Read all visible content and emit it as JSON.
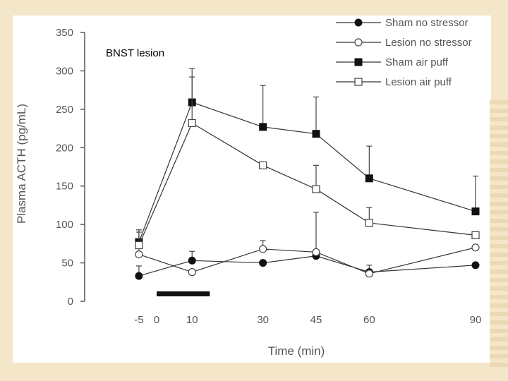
{
  "chart_data": {
    "type": "line",
    "title": "",
    "annotation": "BNST lesion",
    "xlabel": "Time (min)",
    "ylabel": "Plasma ACTH (pg/mL)",
    "x": [
      -5,
      10,
      30,
      45,
      60,
      90
    ],
    "x_ticks": [
      "-5",
      "0",
      "10",
      "30",
      "45",
      "60",
      "90"
    ],
    "y_ticks": [
      "0",
      "50",
      "100",
      "150",
      "200",
      "250",
      "300",
      "350"
    ],
    "ylim": [
      0,
      350
    ],
    "stressor_period": [
      0,
      15
    ],
    "series": [
      {
        "name": "Sham no stressor",
        "marker": "filled-circle",
        "values": [
          33,
          53,
          50,
          59,
          38,
          47
        ],
        "errors_up": [
          13,
          12,
          0,
          8,
          9,
          0
        ]
      },
      {
        "name": "Lesion no stressor",
        "marker": "open-circle",
        "values": [
          61,
          38,
          68,
          64,
          36,
          70
        ],
        "errors_up": [
          10,
          0,
          11,
          52,
          0,
          0
        ]
      },
      {
        "name": "Sham air puff",
        "marker": "filled-square",
        "values": [
          77,
          259,
          227,
          218,
          160,
          117
        ],
        "errors_up": [
          13,
          44,
          54,
          48,
          42,
          46
        ]
      },
      {
        "name": "Lesion air puff",
        "marker": "open-square",
        "values": [
          73,
          232,
          177,
          146,
          102,
          86
        ],
        "errors_up": [
          20,
          60,
          0,
          31,
          20,
          0
        ]
      }
    ]
  }
}
